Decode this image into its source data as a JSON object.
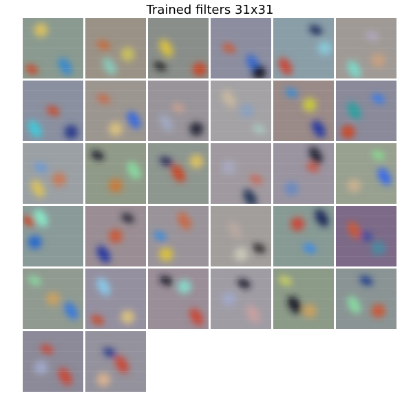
{
  "title": "Trained filters 31x31",
  "grid": {
    "columns": 6,
    "rows": 6,
    "filter_count": 32
  },
  "filters": [
    {
      "base": "#8a9a90",
      "blobs": [
        [
          "#c84a2a",
          0.15,
          0.85
        ],
        [
          "#3a8acc",
          0.7,
          0.8
        ],
        [
          "#d8c060",
          0.3,
          0.2
        ]
      ]
    },
    {
      "base": "#9a9286",
      "blobs": [
        [
          "#c86a3a",
          0.3,
          0.45
        ],
        [
          "#88c8b8",
          0.4,
          0.8
        ],
        [
          "#c8c060",
          0.7,
          0.6
        ]
      ]
    },
    {
      "base": "#8a8e8a",
      "blobs": [
        [
          "#2a2a2a",
          0.2,
          0.8
        ],
        [
          "#d8c040",
          0.3,
          0.5
        ],
        [
          "#c84a2a",
          0.85,
          0.85
        ]
      ]
    },
    {
      "base": "#8c8ea0",
      "blobs": [
        [
          "#c85a3a",
          0.3,
          0.5
        ],
        [
          "#3a6acc",
          0.7,
          0.75
        ],
        [
          "#1a1a2a",
          0.8,
          0.9
        ]
      ]
    },
    {
      "base": "#8a9ea8",
      "blobs": [
        [
          "#1a2a5a",
          0.7,
          0.2
        ],
        [
          "#c84a3a",
          0.2,
          0.8
        ],
        [
          "#88c8d8",
          0.85,
          0.5
        ]
      ]
    },
    {
      "base": "#a09a96",
      "blobs": [
        [
          "#b0a8c0",
          0.6,
          0.3
        ],
        [
          "#7ad8c8",
          0.3,
          0.85
        ],
        [
          "#c8a080",
          0.7,
          0.7
        ]
      ]
    },
    {
      "base": "#8a90a0",
      "blobs": [
        [
          "#c84a2a",
          0.5,
          0.5
        ],
        [
          "#40c8d8",
          0.2,
          0.8
        ],
        [
          "#2a3a8a",
          0.8,
          0.85
        ]
      ]
    },
    {
      "base": "#9c9690",
      "blobs": [
        [
          "#c86a4a",
          0.3,
          0.3
        ],
        [
          "#3a6adc",
          0.8,
          0.65
        ],
        [
          "#d8c080",
          0.5,
          0.8
        ]
      ]
    },
    {
      "base": "#98949a",
      "blobs": [
        [
          "#c8a090",
          0.5,
          0.45
        ],
        [
          "#a0a8c0",
          0.3,
          0.7
        ],
        [
          "#2a2a3a",
          0.8,
          0.8
        ]
      ]
    },
    {
      "base": "#a4a2a4",
      "blobs": [
        [
          "#a8c8c0",
          0.8,
          0.8
        ],
        [
          "#c8b8a0",
          0.3,
          0.3
        ],
        [
          "#8aa0c0",
          0.6,
          0.5
        ]
      ]
    },
    {
      "base": "#9a8a88",
      "blobs": [
        [
          "#3a8ad0",
          0.3,
          0.2
        ],
        [
          "#2a3aa0",
          0.75,
          0.8
        ],
        [
          "#c8c840",
          0.6,
          0.4
        ]
      ]
    },
    {
      "base": "#8a8a9a",
      "blobs": [
        [
          "#3a7ae8",
          0.7,
          0.3
        ],
        [
          "#2aa0a0",
          0.3,
          0.5
        ],
        [
          "#c84a2a",
          0.2,
          0.85
        ]
      ]
    },
    {
      "base": "#9aa0a4",
      "blobs": [
        [
          "#6a9ad8",
          0.3,
          0.4
        ],
        [
          "#d8c060",
          0.25,
          0.75
        ],
        [
          "#c87a5a",
          0.6,
          0.6
        ]
      ]
    },
    {
      "base": "#909a88",
      "blobs": [
        [
          "#1a1a2a",
          0.2,
          0.2
        ],
        [
          "#88d8a0",
          0.8,
          0.45
        ],
        [
          "#c87a3a",
          0.5,
          0.7
        ]
      ]
    },
    {
      "base": "#8e9690",
      "blobs": [
        [
          "#2a2a5a",
          0.3,
          0.3
        ],
        [
          "#c84a2a",
          0.5,
          0.5
        ],
        [
          "#d8c060",
          0.8,
          0.3
        ]
      ]
    },
    {
      "base": "#a09aa0",
      "blobs": [
        [
          "#c86a5a",
          0.75,
          0.6
        ],
        [
          "#2a3a5a",
          0.65,
          0.9
        ],
        [
          "#a8a8c0",
          0.3,
          0.4
        ]
      ]
    },
    {
      "base": "#9a94a0",
      "blobs": [
        [
          "#c85a4a",
          0.65,
          0.4
        ],
        [
          "#2a2a3a",
          0.7,
          0.2
        ],
        [
          "#6a8ac0",
          0.3,
          0.75
        ]
      ]
    },
    {
      "base": "#98a090",
      "blobs": [
        [
          "#88d890",
          0.7,
          0.2
        ],
        [
          "#3a6ae8",
          0.8,
          0.55
        ],
        [
          "#c8b090",
          0.3,
          0.7
        ]
      ]
    },
    {
      "base": "#8a9a98",
      "blobs": [
        [
          "#c84a2a",
          0.1,
          0.25
        ],
        [
          "#88e8c8",
          0.3,
          0.2
        ],
        [
          "#2a6acc",
          0.2,
          0.6
        ]
      ]
    },
    {
      "base": "#9a8e94",
      "blobs": [
        [
          "#2a2a3a",
          0.7,
          0.2
        ],
        [
          "#2a3aa0",
          0.3,
          0.8
        ],
        [
          "#c85a3a",
          0.5,
          0.5
        ]
      ]
    },
    {
      "base": "#9a949a",
      "blobs": [
        [
          "#3a8ad8",
          0.2,
          0.5
        ],
        [
          "#c86a4a",
          0.6,
          0.25
        ],
        [
          "#d8c040",
          0.3,
          0.8
        ]
      ]
    },
    {
      "base": "#a29e9c",
      "blobs": [
        [
          "#2a2a2a",
          0.8,
          0.7
        ],
        [
          "#b8a8a0",
          0.4,
          0.4
        ],
        [
          "#c8c8b8",
          0.5,
          0.8
        ]
      ]
    },
    {
      "base": "#889a94",
      "blobs": [
        [
          "#3a8ae8",
          0.6,
          0.7
        ],
        [
          "#1a2a5a",
          0.8,
          0.2
        ],
        [
          "#c84a3a",
          0.4,
          0.3
        ]
      ]
    },
    {
      "base": "#7c6a88",
      "blobs": [
        [
          "#3a4aa0",
          0.5,
          0.5
        ],
        [
          "#c85a3a",
          0.3,
          0.4
        ],
        [
          "#4a8aa0",
          0.7,
          0.7
        ]
      ]
    },
    {
      "base": "#909a90",
      "blobs": [
        [
          "#88d8a0",
          0.2,
          0.2
        ],
        [
          "#3a7ad8",
          0.8,
          0.7
        ],
        [
          "#c8a060",
          0.5,
          0.5
        ]
      ]
    },
    {
      "base": "#9490a0",
      "blobs": [
        [
          "#c84a2a",
          0.2,
          0.85
        ],
        [
          "#88c8e8",
          0.3,
          0.3
        ],
        [
          "#d8c080",
          0.7,
          0.8
        ]
      ]
    },
    {
      "base": "#9a8e98",
      "blobs": [
        [
          "#1a1a2a",
          0.3,
          0.2
        ],
        [
          "#c84a3a",
          0.8,
          0.8
        ],
        [
          "#88d8c8",
          0.6,
          0.3
        ]
      ]
    },
    {
      "base": "#a09ca4",
      "blobs": [
        [
          "#1a1a2a",
          0.55,
          0.25
        ],
        [
          "#c8a0a0",
          0.7,
          0.75
        ],
        [
          "#a0a8c8",
          0.3,
          0.5
        ]
      ]
    },
    {
      "base": "#8c9a88",
      "blobs": [
        [
          "#c8d060",
          0.2,
          0.2
        ],
        [
          "#1a1a2a",
          0.35,
          0.6
        ],
        [
          "#c8a060",
          0.6,
          0.7
        ]
      ]
    },
    {
      "base": "#8a9494",
      "blobs": [
        [
          "#1a3a8a",
          0.5,
          0.2
        ],
        [
          "#88d8a0",
          0.3,
          0.6
        ],
        [
          "#c85a3a",
          0.7,
          0.7
        ]
      ]
    },
    {
      "base": "#8c8a98",
      "blobs": [
        [
          "#c84a3a",
          0.4,
          0.3
        ],
        [
          "#c84a3a",
          0.7,
          0.75
        ],
        [
          "#a0a8c8",
          0.3,
          0.6
        ]
      ]
    },
    {
      "base": "#94929c",
      "blobs": [
        [
          "#2a3a8a",
          0.4,
          0.35
        ],
        [
          "#c84a3a",
          0.6,
          0.55
        ],
        [
          "#d8b090",
          0.3,
          0.8
        ]
      ]
    }
  ]
}
